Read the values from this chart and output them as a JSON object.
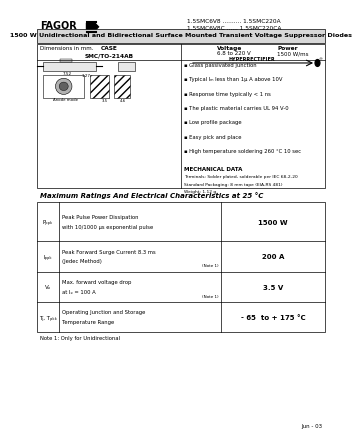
{
  "bg_color": "#ffffff",
  "header_part1": "1.5SMC6V8 .......... 1.5SMC220A",
  "header_part2": "1.5SMC6V8C ...... 1.5SMC220CA",
  "title": "1500 W Unidirectional and Bidirectional Surface Mounted Transient Voltage Suppressor Diodes",
  "features": [
    "Glass passivated junction",
    "Typical Iₘ less than 1μ A above 10V",
    "Response time typically < 1 ns",
    "The plastic material carries UL 94 V-0",
    "Low profile package",
    "Easy pick and place",
    "High temperature soldering 260 °C 10 sec"
  ],
  "mech_title": "MECHANICAL DATA",
  "mech_lines": [
    "Terminals: Solder plated, solderable per IEC 68-2-20",
    "Standard Packaging: 8 mm tape (EIA-RS 481)",
    "Weight: 1.12 g"
  ],
  "table_title": "Maximum Ratings And Electrical Characteristics at 25 °C",
  "table_rows": [
    {
      "symbol": "Pₚₚₖ",
      "desc1": "Peak Pulse Power Dissipation",
      "desc2": "with 10/1000 μs exponential pulse",
      "note": "",
      "value": "1500 W"
    },
    {
      "symbol": "Iₚₚₖ",
      "desc1": "Peak Forward Surge Current 8.3 ms",
      "desc2": "(Jedec Method)",
      "note": "(Note 1)",
      "value": "200 A"
    },
    {
      "symbol": "Vₔ",
      "desc1": "Max. forward voltage drop",
      "desc2": "at Iₔ = 100 A",
      "note": "(Note 1)",
      "value": "3.5 V"
    },
    {
      "symbol": "Tⱼ, Tₚₖₖ",
      "desc1": "Operating Junction and Storage",
      "desc2": "Temperature Range",
      "note": "",
      "value": "- 65  to + 175 °C"
    }
  ],
  "note": "Note 1: Only for Unidirectional",
  "date": "Jun - 03"
}
